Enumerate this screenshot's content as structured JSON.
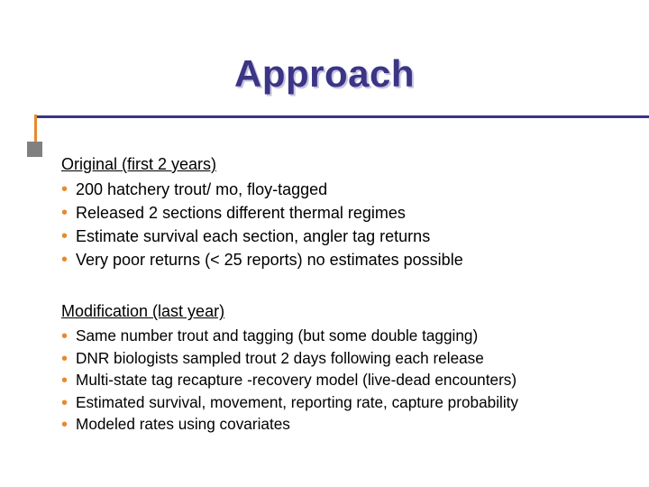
{
  "title": "Approach",
  "colors": {
    "title_color": "#3a3585",
    "title_shadow": "#c9c5df",
    "rule_h": "#3a3585",
    "rule_v": "#e68a2e",
    "square": "#808080",
    "bullet": "#e68a2e",
    "text": "#000000",
    "background": "#ffffff"
  },
  "section1": {
    "heading": "Original (first 2 years)",
    "items": [
      "200 hatchery trout/ mo, floy-tagged",
      "Released 2 sections different thermal regimes",
      "Estimate survival each section, angler tag returns",
      "Very poor returns (< 25 reports) no estimates possible"
    ]
  },
  "section2": {
    "heading": "Modification (last year)",
    "items": [
      "Same number trout and tagging (but some double tagging)",
      "DNR biologists sampled trout 2 days following each release",
      "Multi-state tag recapture -recovery model (live-dead encounters)",
      "Estimated survival, movement, reporting rate, capture probability",
      "Modeled rates using covariates"
    ]
  },
  "typography": {
    "title_fontsize": 42,
    "heading_fontsize": 18,
    "body_fontsize": 18,
    "body_fontsize_small": 17.2
  }
}
